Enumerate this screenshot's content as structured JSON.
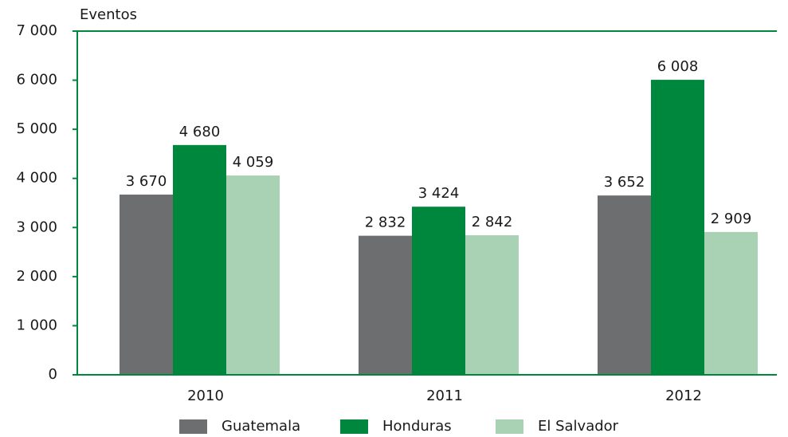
{
  "chart_data": {
    "type": "bar",
    "y_label": "Eventos",
    "categories": [
      "2010",
      "2011",
      "2012"
    ],
    "series": [
      {
        "name": "Guatemala",
        "color": "#6d6e70",
        "values": [
          3670,
          2832,
          3652
        ],
        "value_labels": [
          "3 670",
          "2 832",
          "3 652"
        ]
      },
      {
        "name": "Honduras",
        "color": "#00873e",
        "values": [
          4680,
          3424,
          6008
        ],
        "value_labels": [
          "4 680",
          "3 424",
          "6 008"
        ]
      },
      {
        "name": "El Salvador",
        "color": "#a9d1b4",
        "values": [
          4059,
          2842,
          2909
        ],
        "value_labels": [
          "4 059",
          "2 842",
          "2 909"
        ]
      }
    ],
    "ylim": [
      0,
      7000
    ],
    "yticks": [
      0,
      {
        "value": 1000,
        "label": "1 000"
      },
      {
        "value": 2000,
        "label": "2 000"
      },
      {
        "value": 3000,
        "label": "3 000"
      },
      {
        "value": 4000,
        "label": "4 000"
      },
      {
        "value": 5000,
        "label": "5 000"
      },
      {
        "value": 6000,
        "label": "6 000"
      },
      {
        "value": 7000,
        "label": "7 000"
      }
    ],
    "axis_color": "#00873e",
    "legend": "bottom"
  }
}
